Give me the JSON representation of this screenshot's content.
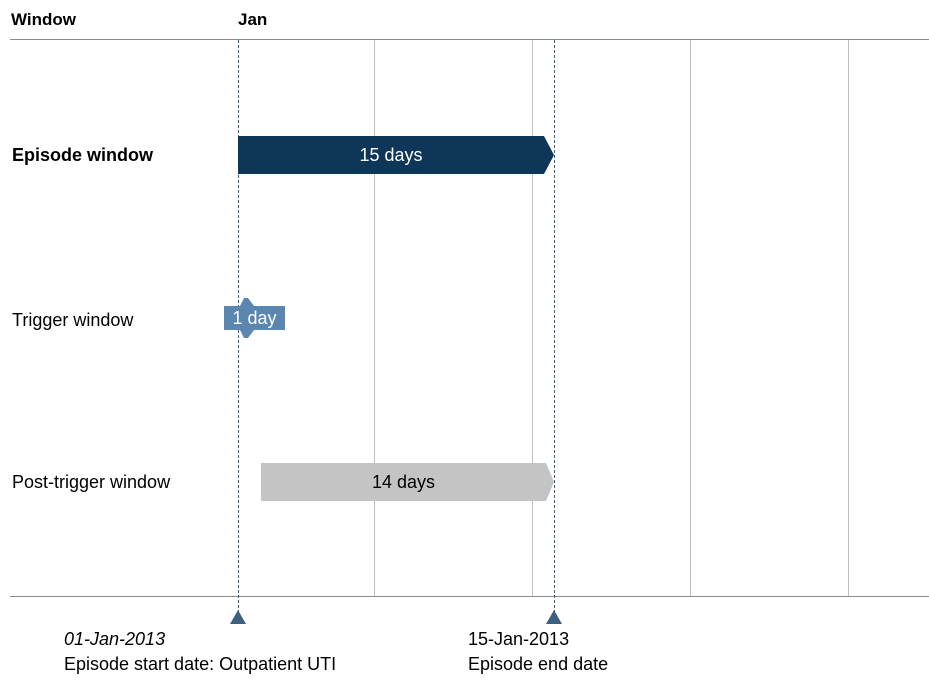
{
  "header": {
    "window_label": "Window",
    "month_label": "Jan"
  },
  "rows": [
    {
      "label": "Episode window",
      "bar_text": "15 days",
      "color": "#0e3659"
    },
    {
      "label": "Trigger window",
      "bar_text": "1 day",
      "color": "#5a86b0"
    },
    {
      "label": "Post-trigger window",
      "bar_text": "14 days",
      "color": "#c4c4c4"
    }
  ],
  "annotations": {
    "start": {
      "date": "01-Jan-2013",
      "desc": "Episode start date: Outpatient UTI"
    },
    "end": {
      "date": "15-Jan-2013",
      "desc": "Episode end date"
    }
  },
  "colors": {
    "marker": "#3d5f80",
    "gridline": "#bfbfbf",
    "axis": "#8c8c8c"
  }
}
